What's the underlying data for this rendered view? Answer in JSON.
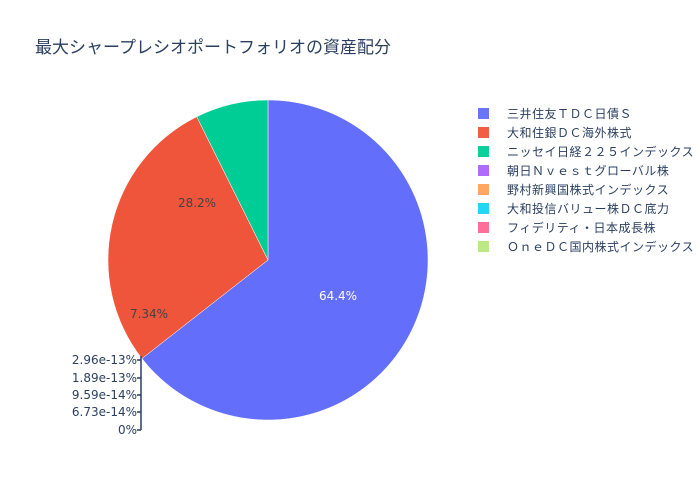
{
  "title": "最大シャープレシオポートフォリオの資産配分",
  "chart_data": {
    "type": "pie",
    "title": "最大シャープレシオポートフォリオの資産配分",
    "categories": [
      "三井住友ＴＤＣ日債Ｓ",
      "大和住銀ＤＣ海外株式",
      "ニッセイ日経２２５インデックス",
      "朝日Ｎｖｅｓｔグローバル株",
      "野村新興国株式インデックス",
      "大和投信バリュー株ＤＣ底力",
      "フィデリティ・日本成長株",
      "ＯｎｅＤＣ国内株式インデックス"
    ],
    "values": [
      64.4,
      28.2,
      7.34,
      2.96e-13,
      1.89e-13,
      9.59e-14,
      6.73e-14,
      0
    ],
    "labels": [
      "64.4%",
      "28.2%",
      "7.34%",
      "2.96e-13%",
      "1.89e-13%",
      "9.59e-14%",
      "6.73e-14%",
      "0%"
    ],
    "colors": [
      "#636efa",
      "#ef553b",
      "#00cc96",
      "#ab63fa",
      "#ffa15a",
      "#19d3f3",
      "#ff6692",
      "#b6e880"
    ],
    "legend_position": "right",
    "direction": "clockwise",
    "start_angle": 90
  },
  "legend": {
    "items": [
      {
        "label": "三井住友ＴＤＣ日債Ｓ",
        "color": "#636efa"
      },
      {
        "label": "大和住銀ＤＣ海外株式",
        "color": "#ef553b"
      },
      {
        "label": "ニッセイ日経２２５インデックス",
        "color": "#00cc96"
      },
      {
        "label": "朝日Ｎｖｅｓｔグローバル株",
        "color": "#ab63fa"
      },
      {
        "label": "野村新興国株式インデックス",
        "color": "#ffa15a"
      },
      {
        "label": "大和投信バリュー株ＤＣ底力",
        "color": "#19d3f3"
      },
      {
        "label": "フィデリティ・日本成長株",
        "color": "#ff6692"
      },
      {
        "label": "ＯｎｅＤＣ国内株式インデックス",
        "color": "#b6e880"
      }
    ]
  },
  "slice_labels": {
    "blue": "64.4%",
    "red": "28.2%",
    "green": "7.34%"
  },
  "tiny_labels": [
    "2.96e-13%",
    "1.89e-13%",
    "9.59e-14%",
    "6.73e-14%",
    "0%"
  ]
}
